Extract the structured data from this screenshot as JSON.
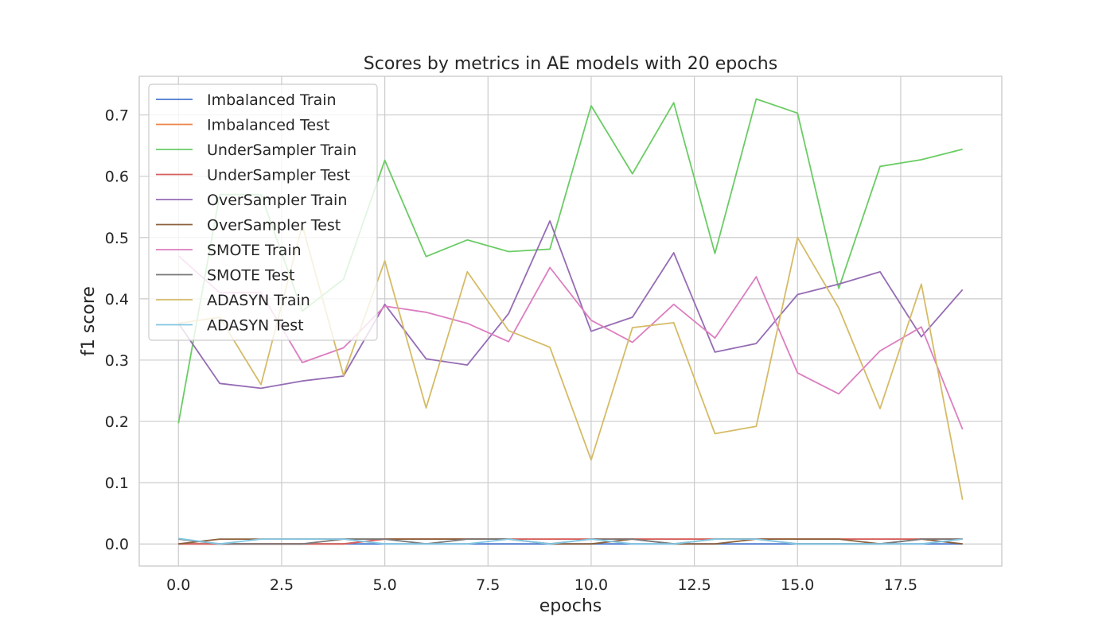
{
  "chart_data": {
    "type": "line",
    "title": "Scores by metrics in AE models with 20 epochs",
    "xlabel": "epochs",
    "ylabel": "f1 score",
    "xlim": [
      -0.95,
      19.95
    ],
    "ylim": [
      -0.036,
      0.763
    ],
    "xticks": [
      0.0,
      2.5,
      5.0,
      7.5,
      10.0,
      12.5,
      15.0,
      17.5
    ],
    "xtick_labels": [
      "0.0",
      "2.5",
      "5.0",
      "7.5",
      "10.0",
      "12.5",
      "15.0",
      "17.5"
    ],
    "yticks": [
      0.0,
      0.1,
      0.2,
      0.3,
      0.4,
      0.5,
      0.6,
      0.7
    ],
    "ytick_labels": [
      "0.0",
      "0.1",
      "0.2",
      "0.3",
      "0.4",
      "0.5",
      "0.6",
      "0.7"
    ],
    "grid": true,
    "legend_position": "top-left",
    "x": [
      0,
      1,
      2,
      3,
      4,
      5,
      6,
      7,
      8,
      9,
      10,
      11,
      12,
      13,
      14,
      15,
      16,
      17,
      18,
      19
    ],
    "series": [
      {
        "name": "Imbalanced Train",
        "color": "#4878d0",
        "values": [
          0,
          0,
          0,
          0,
          0,
          0,
          0,
          0,
          0,
          0,
          0,
          0,
          0,
          0,
          0,
          0,
          0,
          0,
          0,
          0
        ]
      },
      {
        "name": "Imbalanced Test",
        "color": "#ee854a",
        "values": [
          0,
          0,
          0,
          0,
          0,
          0.008,
          0.008,
          0.008,
          0.008,
          0.008,
          0.008,
          0.008,
          0.008,
          0.008,
          0.008,
          0.008,
          0.008,
          0.008,
          0.008,
          0.008
        ]
      },
      {
        "name": "UnderSampler Train",
        "color": "#6acc64",
        "values": [
          0.197,
          0.57,
          0.57,
          0.38,
          0.432,
          0.626,
          0.469,
          0.496,
          0.477,
          0.481,
          0.715,
          0.604,
          0.72,
          0.474,
          0.726,
          0.703,
          0.417,
          0.616,
          0.627,
          0.644
        ]
      },
      {
        "name": "UnderSampler Test",
        "color": "#d65f5f",
        "values": [
          0,
          0,
          0,
          0,
          0,
          0.008,
          0.008,
          0.008,
          0.008,
          0.008,
          0.008,
          0.008,
          0.008,
          0.008,
          0.008,
          0.008,
          0.008,
          0.008,
          0.008,
          0.008
        ]
      },
      {
        "name": "OverSampler Train",
        "color": "#956cb4",
        "values": [
          0.36,
          0.262,
          0.254,
          0.266,
          0.274,
          0.391,
          0.302,
          0.292,
          0.376,
          0.527,
          0.347,
          0.37,
          0.475,
          0.313,
          0.327,
          0.407,
          0.424,
          0.444,
          0.338,
          0.415
        ]
      },
      {
        "name": "OverSampler Test",
        "color": "#8c613c",
        "values": [
          0,
          0.008,
          0.008,
          0.008,
          0.008,
          0.008,
          0.008,
          0.008,
          0.008,
          0,
          0,
          0.008,
          0,
          0,
          0.008,
          0.008,
          0.008,
          0,
          0.008,
          0
        ]
      },
      {
        "name": "SMOTE Train",
        "color": "#dc7ec0",
        "values": [
          0.47,
          0.41,
          0.41,
          0.296,
          0.32,
          0.388,
          0.378,
          0.36,
          0.33,
          0.451,
          0.365,
          0.329,
          0.391,
          0.336,
          0.436,
          0.279,
          0.245,
          0.315,
          0.354,
          0.187
        ]
      },
      {
        "name": "SMOTE Test",
        "color": "#797979",
        "values": [
          0.008,
          0,
          0,
          0,
          0.008,
          0.008,
          0,
          0.008,
          0.008,
          0,
          0.008,
          0.008,
          0,
          0.008,
          0.008,
          0,
          0,
          0,
          0.008,
          0.008
        ]
      },
      {
        "name": "ADASYN Train",
        "color": "#d5bb67",
        "values": [
          0.36,
          0.37,
          0.26,
          0.52,
          0.275,
          0.462,
          0.222,
          0.444,
          0.348,
          0.321,
          0.137,
          0.353,
          0.361,
          0.18,
          0.192,
          0.5,
          0.385,
          0.221,
          0.424,
          0.072
        ]
      },
      {
        "name": "ADASYN Test",
        "color": "#82c6e2",
        "values": [
          0.009,
          0,
          0.008,
          0.008,
          0.008,
          0,
          0,
          0,
          0.008,
          0,
          0.008,
          0,
          0,
          0.008,
          0.008,
          0,
          0,
          0,
          0,
          0.008
        ]
      }
    ]
  }
}
